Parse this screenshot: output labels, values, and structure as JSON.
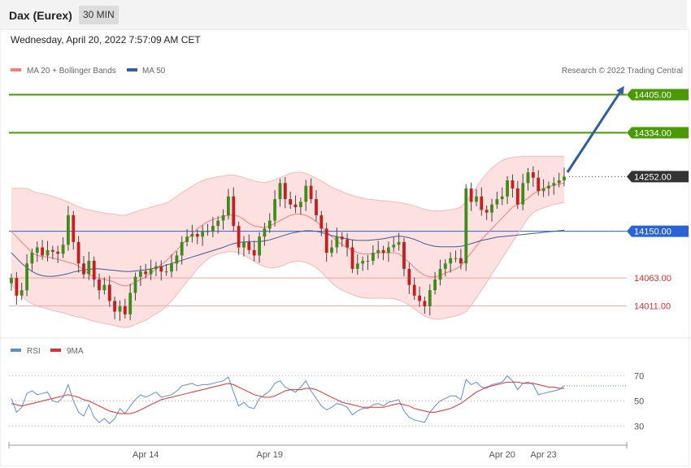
{
  "header": {
    "title": "Dax (Eurex)",
    "timeframe": "30 MIN",
    "datetime": "Wednesday, April 20, 2022 7:57:09 AM CET"
  },
  "chart_data": {
    "type": "candlestick",
    "legend": [
      {
        "label": "MA 20 + Bollinger Bands",
        "color": "#f08080"
      },
      {
        "label": "MA 50",
        "color": "#3a5c99"
      }
    ],
    "credit": "Research © 2022 Trading Central",
    "ylim": [
      13960,
      14430
    ],
    "levels": [
      {
        "value": 14405,
        "label": "14405.00",
        "color": "#4a9a05",
        "kind": "resistance"
      },
      {
        "value": 14334,
        "label": "14334.00",
        "color": "#4a9a05",
        "kind": "resistance"
      },
      {
        "value": 14252,
        "label": "14252.00",
        "color": "#333333",
        "kind": "last"
      },
      {
        "value": 14150,
        "label": "14150.00",
        "color": "#2a63d6",
        "kind": "pivot"
      },
      {
        "value": 14063,
        "label": "14063.00",
        "color": "#e03030",
        "kind": "support"
      },
      {
        "value": 14011,
        "label": "14011.00",
        "color": "#e03030",
        "kind": "support"
      }
    ],
    "close": [
      14063,
      14030,
      14040,
      14090,
      14110,
      14120,
      14105,
      14115,
      14112,
      14108,
      14125,
      14180,
      14130,
      14090,
      14070,
      14095,
      14060,
      14040,
      14050,
      14020,
      14000,
      14010,
      13995,
      14035,
      14065,
      14075,
      14070,
      14080,
      14085,
      14075,
      14075,
      14090,
      14105,
      14130,
      14140,
      14145,
      14140,
      14150,
      14150,
      14160,
      14170,
      14180,
      14215,
      14160,
      14120,
      14130,
      14115,
      14105,
      14140,
      14155,
      14170,
      14210,
      14240,
      14210,
      14200,
      14195,
      14205,
      14235,
      14210,
      14180,
      14155,
      14110,
      14120,
      14140,
      14135,
      14120,
      14080,
      14090,
      14095,
      14095,
      14110,
      14115,
      14110,
      14120,
      14125,
      14130,
      14080,
      14050,
      14030,
      14020,
      14010,
      14040,
      14060,
      14080,
      14090,
      14100,
      14100,
      14090,
      14230,
      14205,
      14215,
      14190,
      14185,
      14200,
      14210,
      14215,
      14245,
      14230,
      14200,
      14240,
      14260,
      14250,
      14225,
      14230,
      14235,
      14240,
      14245,
      14252
    ],
    "ma20": [
      14150,
      14140,
      14130,
      14120,
      14110,
      14105,
      14103,
      14102,
      14100,
      14098,
      14095,
      14092,
      14090,
      14085,
      14078,
      14070,
      14065,
      14062,
      14060,
      14058,
      14055,
      14050,
      14048,
      14050,
      14055,
      14060,
      14065,
      14072,
      14080,
      14088,
      14095,
      14105,
      14115,
      14125,
      14135,
      14145,
      14155,
      14162,
      14168,
      14172,
      14175,
      14178,
      14180,
      14180,
      14178,
      14172,
      14165,
      14160,
      14158,
      14157,
      14160,
      14165,
      14170,
      14175,
      14180,
      14182,
      14182,
      14180,
      14175,
      14168,
      14160,
      14150,
      14140,
      14132,
      14125,
      14120,
      14115,
      14110,
      14108,
      14108,
      14108,
      14110,
      14110,
      14110,
      14110,
      14108,
      14100,
      14092,
      14082,
      14074,
      14068,
      14065,
      14065,
      14068,
      14072,
      14076,
      14080,
      14085,
      14098,
      14110,
      14122,
      14135,
      14145,
      14155,
      14165,
      14175,
      14185,
      14195,
      14200,
      14205,
      14212,
      14220,
      14225,
      14230,
      14233,
      14236,
      14238,
      14240
    ],
    "bollinger_upper": [
      14230,
      14230,
      14230,
      14230,
      14225,
      14222,
      14220,
      14218,
      14215,
      14212,
      14208,
      14205,
      14200,
      14196,
      14192,
      14190,
      14188,
      14186,
      14184,
      14183,
      14182,
      14180,
      14180,
      14183,
      14186,
      14190,
      14192,
      14195,
      14198,
      14200,
      14203,
      14208,
      14215,
      14222,
      14228,
      14234,
      14240,
      14244,
      14248,
      14250,
      14252,
      14253,
      14255,
      14255,
      14253,
      14250,
      14247,
      14244,
      14242,
      14241,
      14243,
      14246,
      14250,
      14254,
      14258,
      14260,
      14260,
      14258,
      14254,
      14249,
      14244,
      14238,
      14232,
      14228,
      14224,
      14220,
      14217,
      14214,
      14212,
      14210,
      14209,
      14208,
      14207,
      14206,
      14205,
      14204,
      14202,
      14200,
      14197,
      14194,
      14191,
      14189,
      14188,
      14188,
      14189,
      14190,
      14192,
      14195,
      14205,
      14218,
      14232,
      14246,
      14258,
      14268,
      14276,
      14282,
      14286,
      14288,
      14289,
      14290,
      14290,
      14290,
      14290,
      14290,
      14290,
      14290,
      14290,
      14290
    ],
    "bollinger_lower": [
      14050,
      14040,
      14030,
      14020,
      14015,
      14010,
      14008,
      14005,
      14002,
      14000,
      13998,
      13995,
      13992,
      13990,
      13988,
      13985,
      13982,
      13980,
      13978,
      13976,
      13974,
      13972,
      13970,
      13972,
      13976,
      13980,
      13984,
      13990,
      13996,
      14002,
      14010,
      14020,
      14032,
      14044,
      14056,
      14068,
      14080,
      14090,
      14098,
      14104,
      14108,
      14110,
      14112,
      14112,
      14110,
      14106,
      14100,
      14094,
      14088,
      14084,
      14082,
      14082,
      14084,
      14088,
      14092,
      14094,
      14094,
      14092,
      14088,
      14082,
      14074,
      14064,
      14054,
      14046,
      14040,
      14036,
      14032,
      14028,
      14026,
      14025,
      14025,
      14025,
      14025,
      14025,
      14024,
      14022,
      14018,
      14012,
      14005,
      13998,
      13992,
      13988,
      13986,
      13986,
      13988,
      13990,
      13992,
      13995,
      14000,
      14012,
      14026,
      14040,
      14055,
      14070,
      14085,
      14100,
      14115,
      14130,
      14145,
      14160,
      14175,
      14185,
      14190,
      14194,
      14197,
      14200,
      14202,
      14204
    ],
    "ma50": [
      14110,
      14100,
      14090,
      14082,
      14075,
      14070,
      14067,
      14066,
      14066,
      14067,
      14069,
      14071,
      14074,
      14076,
      14078,
      14079,
      14080,
      14080,
      14079,
      14078,
      14077,
      14076,
      14075,
      14075,
      14076,
      14077,
      14078,
      14080,
      14082,
      14084,
      14087,
      14090,
      14093,
      14096,
      14099,
      14102,
      14105,
      14108,
      14111,
      14114,
      14117,
      14120,
      14124,
      14127,
      14129,
      14130,
      14131,
      14131,
      14131,
      14132,
      14134,
      14137,
      14140,
      14143,
      14146,
      14148,
      14150,
      14151,
      14151,
      14150,
      14148,
      14145,
      14142,
      14140,
      14138,
      14136,
      14134,
      14133,
      14133,
      14133,
      14134,
      14135,
      14136,
      14138,
      14140,
      14141,
      14140,
      14138,
      14135,
      14131,
      14127,
      14124,
      14122,
      14121,
      14121,
      14121,
      14121,
      14122,
      14124,
      14127,
      14130,
      14133,
      14135,
      14137,
      14139,
      14140,
      14141,
      14142,
      14143,
      14144,
      14145,
      14146,
      14147,
      14148,
      14149,
      14150,
      14151,
      14152
    ],
    "rsi": {
      "legend": [
        {
          "label": "RSI",
          "color": "#5b8ed8"
        },
        {
          "label": "9MA",
          "color": "#e03030"
        }
      ],
      "ylim": [
        20,
        80
      ],
      "ticks": [
        "70",
        "50",
        "30"
      ],
      "tick_values": [
        70,
        50,
        30
      ],
      "rsi": [
        52,
        41,
        45,
        56,
        58,
        55,
        56,
        57,
        50,
        49,
        53,
        63,
        50,
        41,
        38,
        47,
        37,
        33,
        36,
        32,
        36,
        44,
        40,
        46,
        51,
        55,
        53,
        55,
        57,
        53,
        54,
        55,
        58,
        62,
        63,
        64,
        62,
        63,
        63,
        64,
        65,
        66,
        69,
        57,
        46,
        49,
        45,
        44,
        52,
        55,
        58,
        64,
        66,
        61,
        59,
        57,
        61,
        66,
        58,
        52,
        46,
        43,
        45,
        48,
        47,
        45,
        39,
        42,
        44,
        44,
        47,
        48,
        46,
        49,
        50,
        51,
        42,
        37,
        35,
        34,
        33,
        41,
        46,
        50,
        52,
        54,
        54,
        51,
        67,
        63,
        65,
        61,
        60,
        63,
        64,
        65,
        70,
        66,
        59,
        64,
        65,
        63,
        55,
        56,
        57,
        58,
        59,
        62
      ],
      "ma9": [
        48,
        47,
        46,
        47,
        48,
        49,
        50,
        51,
        52,
        53,
        54,
        55,
        54,
        53,
        51,
        50,
        48,
        46,
        44,
        42,
        41,
        40,
        40,
        40,
        41,
        43,
        45,
        47,
        49,
        51,
        52,
        53,
        54,
        55,
        56,
        57,
        58,
        59,
        60,
        61,
        62,
        63,
        64,
        63,
        61,
        59,
        57,
        55,
        54,
        53,
        53,
        54,
        56,
        58,
        59,
        59,
        59,
        60,
        60,
        59,
        57,
        55,
        53,
        51,
        49,
        48,
        47,
        46,
        45,
        45,
        45,
        45,
        45,
        46,
        47,
        48,
        47,
        46,
        44,
        43,
        42,
        41,
        41,
        42,
        43,
        44,
        46,
        48,
        51,
        54,
        57,
        59,
        61,
        62,
        63,
        64,
        65,
        65,
        65,
        64,
        64,
        64,
        63,
        62,
        61,
        61,
        60,
        60
      ]
    },
    "x_ticks": [
      {
        "label": "Apr 14",
        "index": 26
      },
      {
        "label": "Apr 19",
        "index": 50
      },
      {
        "label": "Apr 20",
        "index": 95
      },
      {
        "label": "Apr 23",
        "index": 103
      }
    ]
  }
}
